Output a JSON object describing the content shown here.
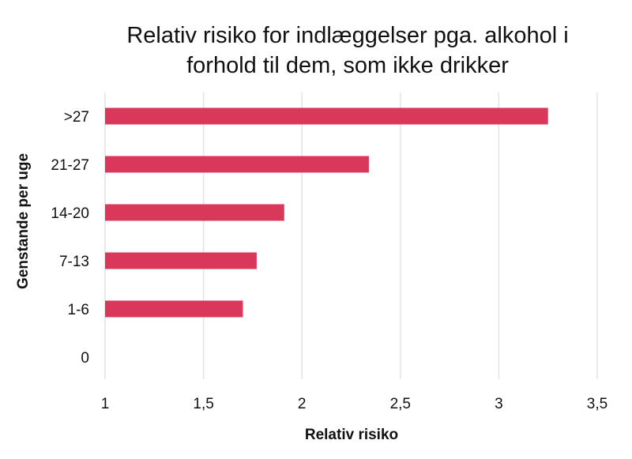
{
  "chart_data": {
    "type": "bar",
    "orientation": "horizontal",
    "title_lines": [
      "Relativ risiko for indlæggelser pga. alkohol i",
      "forhold til dem, som ikke drikker"
    ],
    "xlabel": "Relativ risiko",
    "ylabel": "Genstande per uge",
    "categories": [
      ">27",
      "21-27",
      "14-20",
      "7-13",
      "1-6",
      "0"
    ],
    "values": [
      3.25,
      2.34,
      1.91,
      1.77,
      1.7,
      1.0
    ],
    "xlim": [
      1,
      3.5
    ],
    "xticks": [
      1,
      1.5,
      2,
      2.5,
      3,
      3.5
    ],
    "xtick_labels": [
      "1",
      "1,5",
      "2",
      "2,5",
      "3",
      "3,5"
    ],
    "bar_color": "#d9385a",
    "grid": "vertical",
    "legend": "none"
  }
}
